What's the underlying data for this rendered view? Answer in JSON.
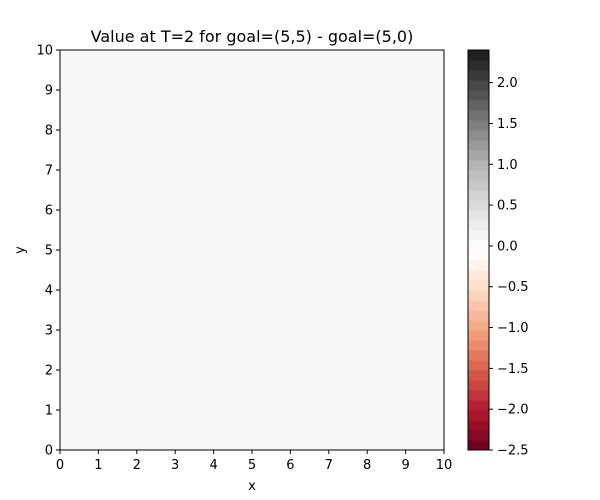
{
  "chart_data": {
    "type": "heatmap",
    "title": "Value at T=2 for goal=(5,5) - goal=(5,0)",
    "xlabel": "x",
    "ylabel": "y",
    "xlim": [
      0,
      10
    ],
    "ylim": [
      0,
      10
    ],
    "x_ticks": [
      "0",
      "1",
      "2",
      "3",
      "4",
      "5",
      "6",
      "7",
      "8",
      "9",
      "10"
    ],
    "y_ticks": [
      "0",
      "1",
      "2",
      "3",
      "4",
      "5",
      "6",
      "7",
      "8",
      "9",
      "10"
    ],
    "cell_value": 0.0,
    "field_color": "#f7f7f7",
    "colormap": "RdGy",
    "colorbar": {
      "range": [
        -2.5,
        2.4
      ],
      "levels": 40,
      "ticks": [
        "-2.5",
        "-2.0",
        "-1.5",
        "-1.0",
        "-0.5",
        "0.0",
        "0.5",
        "1.0",
        "1.5",
        "2.0"
      ],
      "tick_values": [
        -2.5,
        -2.0,
        -1.5,
        -1.0,
        -0.5,
        0.0,
        0.5,
        1.0,
        1.5,
        2.0
      ],
      "placement": "right"
    },
    "grid": false
  }
}
